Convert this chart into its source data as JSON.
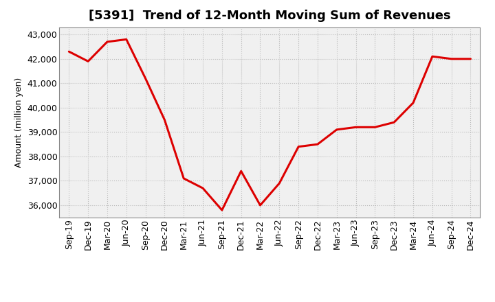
{
  "title": "[5391]  Trend of 12-Month Moving Sum of Revenues",
  "ylabel": "Amount (million yen)",
  "line_color": "#dd0000",
  "background_color": "#ffffff",
  "plot_bg_color": "#f0f0f0",
  "grid_color": "#bbbbbb",
  "x_labels": [
    "Sep-19",
    "Dec-19",
    "Mar-20",
    "Jun-20",
    "Sep-20",
    "Dec-20",
    "Mar-21",
    "Jun-21",
    "Sep-21",
    "Dec-21",
    "Mar-22",
    "Jun-22",
    "Sep-22",
    "Dec-22",
    "Mar-23",
    "Jun-23",
    "Sep-23",
    "Dec-23",
    "Mar-24",
    "Jun-24",
    "Sep-24",
    "Dec-24"
  ],
  "values": [
    42300,
    41900,
    42700,
    42800,
    41200,
    39500,
    37100,
    36700,
    35800,
    37400,
    36000,
    36900,
    38400,
    38500,
    39100,
    39200,
    39200,
    39400,
    40200,
    42100,
    42000,
    42000
  ],
  "ylim": [
    35500,
    43300
  ],
  "yticks": [
    36000,
    37000,
    38000,
    39000,
    40000,
    41000,
    42000,
    43000
  ],
  "title_fontsize": 13,
  "ylabel_fontsize": 9,
  "tick_fontsize": 9,
  "linewidth": 2.2
}
